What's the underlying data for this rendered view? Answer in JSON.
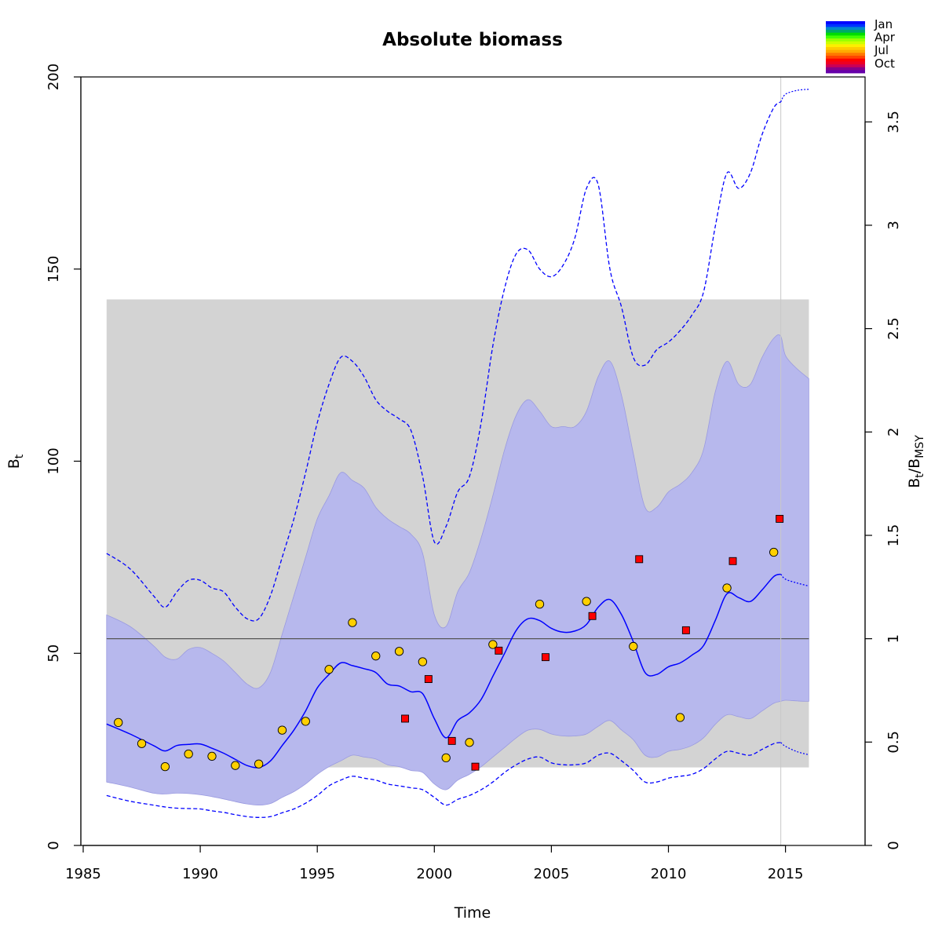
{
  "chart_data": {
    "type": "line",
    "title": "Absolute biomass",
    "xlabel": "Time",
    "ylabel": {
      "main": "B",
      "sub": "t"
    },
    "ylabel_right": {
      "main": "B",
      "sub": "t",
      "sep": "/",
      "main2": "B",
      "sub2": "MSY"
    },
    "xlim": [
      1984.9,
      2018.4
    ],
    "ylim": [
      0,
      200
    ],
    "x_ticks": [
      1985,
      1990,
      1995,
      2000,
      2005,
      2010,
      2015
    ],
    "y_ticks": [
      0,
      50,
      100,
      150,
      200
    ],
    "y2_ticks": [
      {
        "label": "0",
        "ratio": 0
      },
      {
        "label": "0.5",
        "ratio": 0.5
      },
      {
        "label": "1",
        "ratio": 1
      },
      {
        "label": "1.5",
        "ratio": 1.5
      },
      {
        "label": "2",
        "ratio": 2
      },
      {
        "label": "2.5",
        "ratio": 2.5
      },
      {
        "label": "3",
        "ratio": 3
      },
      {
        "label": "3.5",
        "ratio": 3.5
      }
    ],
    "bmsy": 53.8,
    "bmsy_ci": [
      20.3,
      142.1
    ],
    "bmsy_ci_x": [
      1986.0,
      2016.0
    ],
    "last_obs_time": 2014.8,
    "grid": false,
    "legend_position": "top-right",
    "colors": {
      "line": "#0000ff",
      "ci_fill": "#8a8ce0",
      "ci_outer_fill": "#e4e4fb",
      "bmsy_band": "#d3d3d3",
      "bmsy_line": "#555555",
      "index1_fill": "#ffd000",
      "index2_fill": "#ff0000",
      "vline": "#c8c8c8"
    },
    "time": [
      1986.0,
      1987.0,
      1988.0,
      1988.5,
      1989.0,
      1989.5,
      1990.0,
      1990.5,
      1991.0,
      1991.5,
      1992.0,
      1992.5,
      1993.0,
      1993.5,
      1994.0,
      1994.5,
      1995.0,
      1995.5,
      1996.0,
      1996.5,
      1997.0,
      1997.5,
      1998.0,
      1998.5,
      1999.0,
      1999.5,
      2000.0,
      2000.5,
      2001.0,
      2001.5,
      2002.0,
      2002.5,
      2003.0,
      2003.5,
      2004.0,
      2004.5,
      2005.0,
      2005.5,
      2006.0,
      2006.5,
      2007.0,
      2007.5,
      2008.0,
      2008.5,
      2009.0,
      2009.5,
      2010.0,
      2010.5,
      2011.0,
      2011.5,
      2012.0,
      2012.5,
      2013.0,
      2013.5,
      2014.0,
      2014.5,
      2014.8
    ],
    "series": [
      {
        "role": "estimate",
        "values": [
          31.6,
          29.0,
          26.0,
          24.6,
          26.0,
          26.3,
          26.4,
          25.3,
          24.0,
          22.4,
          20.8,
          20.3,
          22.0,
          26.0,
          30.0,
          35.0,
          41.0,
          44.5,
          47.5,
          46.8,
          46.0,
          45.0,
          42.0,
          41.5,
          40.0,
          39.5,
          33.0,
          28.0,
          32.5,
          34.5,
          38.0,
          44.0,
          50.0,
          56.0,
          59.0,
          58.5,
          56.5,
          55.5,
          55.8,
          57.5,
          62.0,
          64.0,
          60.0,
          53.0,
          45.0,
          44.5,
          46.5,
          47.5,
          49.5,
          52.0,
          58.5,
          65.5,
          64.5,
          63.5,
          66.5,
          70.0,
          70.6
        ]
      },
      {
        "role": "ci_lower",
        "values": [
          16.5,
          15.2,
          13.6,
          13.4,
          13.6,
          13.5,
          13.2,
          12.7,
          12.1,
          11.4,
          10.8,
          10.5,
          10.9,
          12.5,
          14.0,
          16.0,
          18.5,
          20.5,
          22.0,
          23.5,
          23.0,
          22.5,
          21.0,
          20.5,
          19.5,
          19.0,
          16.0,
          14.5,
          17.0,
          18.5,
          20.5,
          23.0,
          25.5,
          28.0,
          30.0,
          30.2,
          29.0,
          28.5,
          28.5,
          29.0,
          31.0,
          32.5,
          30.0,
          27.5,
          23.5,
          23.0,
          24.5,
          25.0,
          26.0,
          28.0,
          31.5,
          34.0,
          33.5,
          33.0,
          35.0,
          37.0,
          37.5
        ]
      },
      {
        "role": "ci_upper",
        "values": [
          60.0,
          57.0,
          52.0,
          49.0,
          48.5,
          51.0,
          51.5,
          50.0,
          48.0,
          45.0,
          42.0,
          41.0,
          45.0,
          55.0,
          65.0,
          75.0,
          85.0,
          91.0,
          97.0,
          95.0,
          93.0,
          88.0,
          85.0,
          83.0,
          81.0,
          76.0,
          60.0,
          57.0,
          66.0,
          71.0,
          80.0,
          91.0,
          103.0,
          112.0,
          116.0,
          113.0,
          109.0,
          109.0,
          109.0,
          113.0,
          122.0,
          126.0,
          117.0,
          102.0,
          88.0,
          88.0,
          92.0,
          94.0,
          97.0,
          103.0,
          118.0,
          126.0,
          120.0,
          120.0,
          127.0,
          132.0,
          132.5
        ]
      },
      {
        "role": "pi_lower",
        "values": [
          13.0,
          11.5,
          10.5,
          10.0,
          9.7,
          9.6,
          9.5,
          9.0,
          8.6,
          8.0,
          7.5,
          7.3,
          7.5,
          8.5,
          9.5,
          11.0,
          13.0,
          15.5,
          17.0,
          18.0,
          17.5,
          17.0,
          16.0,
          15.5,
          15.0,
          14.5,
          12.5,
          10.5,
          12.0,
          13.0,
          14.5,
          16.5,
          19.0,
          21.0,
          22.5,
          23.0,
          21.5,
          21.0,
          21.0,
          21.5,
          23.5,
          24.0,
          22.0,
          19.5,
          16.5,
          16.5,
          17.5,
          18.0,
          18.5,
          20.0,
          22.5,
          24.5,
          24.0,
          23.5,
          25.0,
          26.5,
          26.8
        ]
      },
      {
        "role": "pi_upper",
        "values": [
          76.0,
          72.0,
          65.0,
          62.0,
          66.0,
          69.0,
          69.0,
          67.0,
          66.0,
          62.0,
          59.0,
          59.0,
          65.0,
          75.0,
          85.0,
          97.0,
          110.0,
          120.0,
          127.0,
          126.0,
          122.0,
          116.0,
          113.0,
          111.0,
          108.0,
          96.0,
          79.0,
          83.0,
          92.0,
          96.0,
          110.0,
          130.0,
          145.0,
          154.0,
          155.0,
          150.0,
          148.0,
          151.0,
          158.0,
          171.0,
          172.0,
          150.0,
          140.0,
          127.0,
          125.0,
          129.0,
          131.0,
          134.0,
          138.0,
          144.0,
          161.0,
          175.0,
          171.0,
          175.0,
          185.0,
          192.0,
          193.5
        ]
      }
    ],
    "prediction": {
      "time": [
        2014.8,
        2015.0,
        2015.5,
        2016.0
      ],
      "estimate": [
        70.6,
        69.3,
        68.3,
        67.5
      ],
      "ci_lower": [
        37.5,
        37.8,
        37.6,
        37.5
      ],
      "ci_upper": [
        132.5,
        127.5,
        124.0,
        121.5
      ],
      "pi_lower": [
        26.8,
        25.8,
        24.4,
        23.6
      ],
      "pi_upper": [
        193.5,
        195.5,
        196.5,
        196.8
      ]
    },
    "index1_points": [
      {
        "x": 1986.5,
        "y": 32.0
      },
      {
        "x": 1987.5,
        "y": 26.5
      },
      {
        "x": 1988.5,
        "y": 20.5
      },
      {
        "x": 1989.5,
        "y": 23.8
      },
      {
        "x": 1990.5,
        "y": 23.2
      },
      {
        "x": 1991.5,
        "y": 20.8
      },
      {
        "x": 1992.5,
        "y": 21.2
      },
      {
        "x": 1993.5,
        "y": 30.0
      },
      {
        "x": 1994.5,
        "y": 32.3
      },
      {
        "x": 1995.5,
        "y": 45.8
      },
      {
        "x": 1996.5,
        "y": 58.0
      },
      {
        "x": 1997.5,
        "y": 49.3
      },
      {
        "x": 1998.5,
        "y": 50.5
      },
      {
        "x": 1999.5,
        "y": 47.8
      },
      {
        "x": 2000.5,
        "y": 22.8
      },
      {
        "x": 2001.5,
        "y": 26.8
      },
      {
        "x": 2002.5,
        "y": 52.3
      },
      {
        "x": 2004.5,
        "y": 62.8
      },
      {
        "x": 2006.5,
        "y": 63.5
      },
      {
        "x": 2008.5,
        "y": 51.8
      },
      {
        "x": 2010.5,
        "y": 33.3
      },
      {
        "x": 2012.5,
        "y": 67.0
      },
      {
        "x": 2014.5,
        "y": 76.3
      }
    ],
    "index2_points": [
      {
        "x": 1998.75,
        "y": 33.0
      },
      {
        "x": 1999.75,
        "y": 43.3
      },
      {
        "x": 2000.75,
        "y": 27.2
      },
      {
        "x": 2001.75,
        "y": 20.5
      },
      {
        "x": 2002.75,
        "y": 50.7
      },
      {
        "x": 2004.75,
        "y": 49.0
      },
      {
        "x": 2006.75,
        "y": 59.7
      },
      {
        "x": 2008.75,
        "y": 74.5
      },
      {
        "x": 2010.75,
        "y": 56.0
      },
      {
        "x": 2012.75,
        "y": 74.0
      },
      {
        "x": 2014.75,
        "y": 85.0
      }
    ],
    "legend": {
      "labels": [
        "Jan",
        "Apr",
        "Jul",
        "Oct"
      ],
      "colors": [
        "#0000ff",
        "#0033ff",
        "#0088cc",
        "#00aa66",
        "#00dd00",
        "#44ff00",
        "#99ff00",
        "#ccff00",
        "#ffee00",
        "#ffcc00",
        "#ffaa00",
        "#ff7700",
        "#ff4400",
        "#ff0000",
        "#ee0022",
        "#cc0055",
        "#880088",
        "#6600aa"
      ]
    }
  }
}
